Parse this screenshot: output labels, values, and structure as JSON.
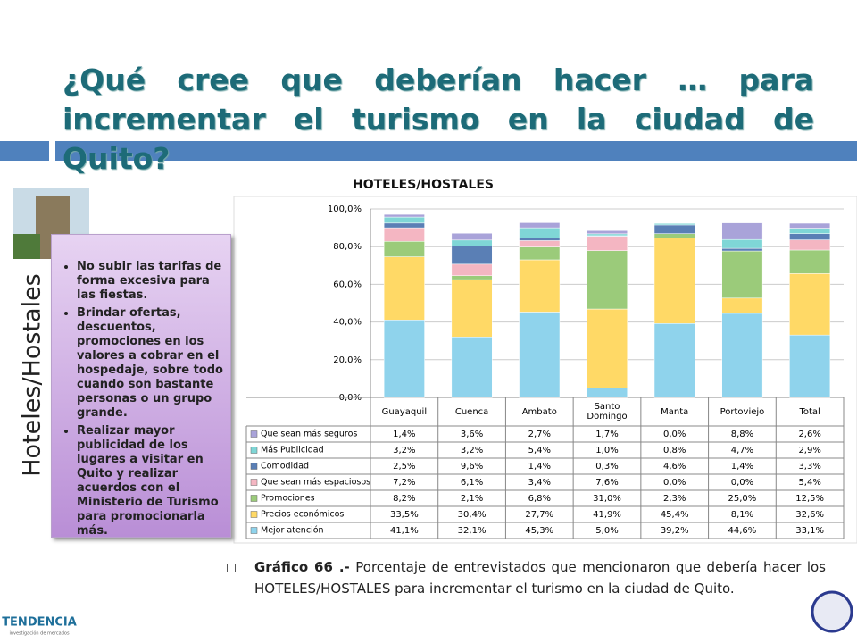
{
  "slide": {
    "title": "¿Qué cree que deberían hacer … para incrementar el turismo en la ciudad de Quito?",
    "side_label": "Hoteles/Hostales",
    "bullets": [
      "No subir las tarifas de forma excesiva para las fiestas.",
      "Brindar ofertas, descuentos, promociones en los valores a cobrar en el hospedaje, sobre todo cuando son bastante personas o un grupo grande.",
      "Realizar mayor publicidad de los lugares a visitar en Quito y realizar acuerdos con el Ministerio de Turismo para promocionarla más."
    ],
    "caption": {
      "label": "Gráfico 66 .-",
      "text": "Porcentaje de entrevistados que mencionaron que debería hacer los HOTELES/HOSTALES para incrementar el turismo en la ciudad de Quito."
    },
    "logo": "TENDENCIA",
    "logo_sub": "investigación de mercados"
  },
  "chart_data": {
    "type": "stacked_bar",
    "title": "HOTELES/HOSTALES",
    "categories": [
      "Guayaquil",
      "Cuenca",
      "Ambato",
      "Santo Domingo",
      "Manta",
      "Portoviejo",
      "Total"
    ],
    "ylim": [
      0,
      100
    ],
    "yticks": [
      {
        "value": 0,
        "label": "0,0%"
      },
      {
        "value": 20,
        "label": "20,0%"
      },
      {
        "value": 40,
        "label": "40,0%"
      },
      {
        "value": 60,
        "label": "60,0%"
      },
      {
        "value": 80,
        "label": "80,0%"
      },
      {
        "value": 100,
        "label": "100,0%"
      }
    ],
    "grid": true,
    "series": [
      {
        "name": "Mejor atención",
        "color": "#8fd3ec",
        "values": [
          41.1,
          32.1,
          45.3,
          5.0,
          39.2,
          44.6,
          33.1
        ],
        "value_labels": [
          "41,1%",
          "32,1%",
          "45,3%",
          "5,0%",
          "39,2%",
          "44,6%",
          "33,1%"
        ]
      },
      {
        "name": "Precios económicos",
        "color": "#ffd966",
        "values": [
          33.5,
          30.4,
          27.7,
          41.9,
          45.4,
          8.1,
          32.6
        ],
        "value_labels": [
          "33,5%",
          "30,4%",
          "27,7%",
          "41,9%",
          "45,4%",
          "8,1%",
          "32,6%"
        ]
      },
      {
        "name": "Promociones",
        "color": "#9bcb7a",
        "values": [
          8.2,
          2.1,
          6.8,
          31.0,
          2.3,
          25.0,
          12.5
        ],
        "value_labels": [
          "8,2%",
          "2,1%",
          "6,8%",
          "31,0%",
          "2,3%",
          "25,0%",
          "12,5%"
        ]
      },
      {
        "name": "Que sean más espaciosos",
        "color": "#f4b6c2",
        "values": [
          7.2,
          6.1,
          3.4,
          7.6,
          0.0,
          0.0,
          5.4
        ],
        "value_labels": [
          "7,2%",
          "6,1%",
          "3,4%",
          "7,6%",
          "0,0%",
          "0,0%",
          "5,4%"
        ]
      },
      {
        "name": "Comodidad",
        "color": "#5a7fb5",
        "values": [
          2.5,
          9.6,
          1.4,
          0.3,
          4.6,
          1.4,
          3.3
        ],
        "value_labels": [
          "2,5%",
          "9,6%",
          "1,4%",
          "0,3%",
          "4,6%",
          "1,4%",
          "3,3%"
        ]
      },
      {
        "name": "Más Publicidad",
        "color": "#7fd6d6",
        "values": [
          3.2,
          3.2,
          5.4,
          1.0,
          0.8,
          4.7,
          2.9
        ],
        "value_labels": [
          "3,2%",
          "3,2%",
          "5,4%",
          "1,0%",
          "0,8%",
          "4,7%",
          "2,9%"
        ]
      },
      {
        "name": "Que sean más seguros",
        "color": "#a9a3d9",
        "values": [
          1.4,
          3.6,
          2.7,
          1.7,
          0.0,
          8.8,
          2.6
        ],
        "value_labels": [
          "1,4%",
          "3,6%",
          "2,7%",
          "1,7%",
          "0,0%",
          "8,8%",
          "2,6%"
        ]
      }
    ]
  }
}
